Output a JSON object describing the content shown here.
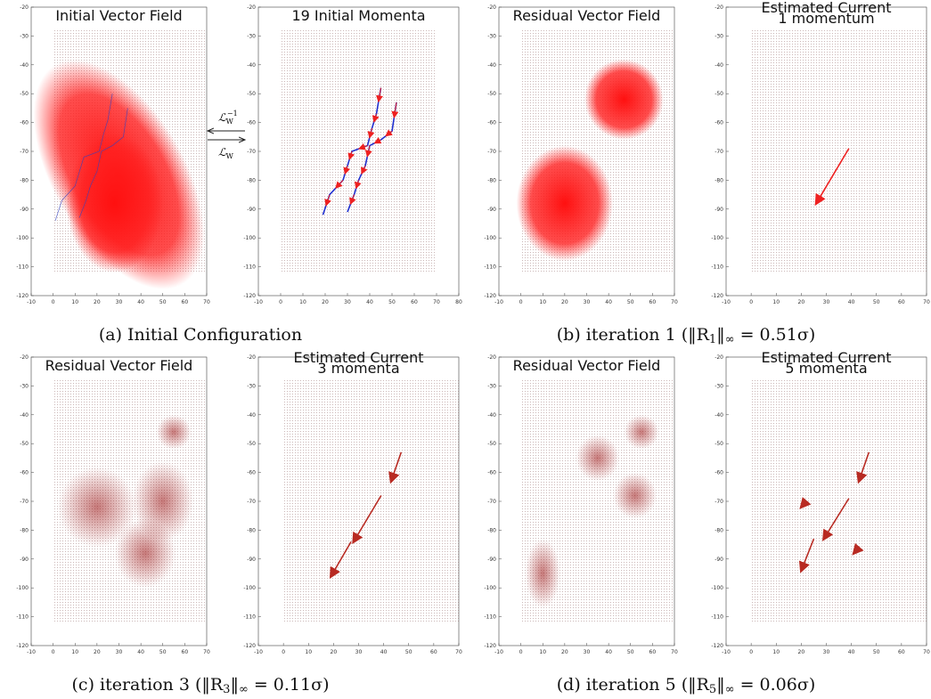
{
  "figures": [
    {
      "caption": [
        {
          "t": "(a) Initial Configuration",
          "k": "n"
        }
      ],
      "operators": {
        "top": {
          "symbol": "ℒ",
          "sub": "W",
          "sup": "−1"
        },
        "bottom": {
          "symbol": "ℒ",
          "sub": "W"
        }
      },
      "panels": [
        {
          "title": [
            "Initial Vector Field"
          ],
          "xticks": [
            -10,
            0,
            10,
            20,
            30,
            40,
            50,
            60,
            70
          ],
          "yticks": [
            -20,
            -30,
            -40,
            -50,
            -60,
            -70,
            -80,
            -90,
            -100,
            -110,
            -120
          ]
        },
        {
          "title": [
            "19 Initial Momenta"
          ],
          "xticks": [
            -10,
            0,
            10,
            20,
            30,
            40,
            50,
            60,
            70,
            80
          ],
          "yticks": [
            -20,
            -30,
            -40,
            -50,
            -60,
            -70,
            -80,
            -90,
            -100,
            -110,
            -120
          ]
        }
      ]
    },
    {
      "caption": [
        {
          "t": "(b) iteration 1 (‖R",
          "k": "n"
        },
        {
          "t": "1",
          "k": "sub"
        },
        {
          "t": "‖",
          "k": "n"
        },
        {
          "t": "∞",
          "k": "sub"
        },
        {
          "t": " = 0.51σ)",
          "k": "n"
        }
      ],
      "panels": [
        {
          "title": [
            "Residual Vector Field"
          ],
          "xticks": [
            -10,
            0,
            10,
            20,
            30,
            40,
            50,
            60,
            70
          ],
          "yticks": [
            -20,
            -30,
            -40,
            -50,
            -60,
            -70,
            -80,
            -90,
            -100,
            -110,
            -120
          ]
        },
        {
          "title": [
            "Estimated Current",
            "1 momentum"
          ],
          "xticks": [
            -10,
            0,
            10,
            20,
            30,
            40,
            50,
            60,
            70
          ],
          "yticks": [
            -20,
            -30,
            -40,
            -50,
            -60,
            -70,
            -80,
            -90,
            -100,
            -110,
            -120
          ]
        }
      ]
    },
    {
      "caption": [
        {
          "t": "(c) iteration 3 (‖R",
          "k": "n"
        },
        {
          "t": "3",
          "k": "sub"
        },
        {
          "t": "‖",
          "k": "n"
        },
        {
          "t": "∞",
          "k": "sub"
        },
        {
          "t": " = 0.11σ)",
          "k": "n"
        }
      ],
      "panels": [
        {
          "title": [
            "Residual Vector Field"
          ],
          "xticks": [
            -10,
            0,
            10,
            20,
            30,
            40,
            50,
            60,
            70
          ],
          "yticks": [
            -20,
            -30,
            -40,
            -50,
            -60,
            -70,
            -80,
            -90,
            -100,
            -110,
            -120
          ]
        },
        {
          "title": [
            "Estimated Current",
            "3 momenta"
          ],
          "xticks": [
            -10,
            0,
            10,
            20,
            30,
            40,
            50,
            60,
            70
          ],
          "yticks": [
            -20,
            -30,
            -40,
            -50,
            -60,
            -70,
            -80,
            -90,
            -100,
            -110,
            -120
          ]
        }
      ]
    },
    {
      "caption": [
        {
          "t": "(d) iteration 5 (‖R",
          "k": "n"
        },
        {
          "t": "5",
          "k": "sub"
        },
        {
          "t": "‖",
          "k": "n"
        },
        {
          "t": "∞",
          "k": "sub"
        },
        {
          "t": " = 0.06σ)",
          "k": "n"
        }
      ],
      "panels": [
        {
          "title": [
            "Residual Vector Field"
          ],
          "xticks": [
            -10,
            0,
            10,
            20,
            30,
            40,
            50,
            60,
            70
          ],
          "yticks": [
            -20,
            -30,
            -40,
            -50,
            -60,
            -70,
            -80,
            -90,
            -100,
            -110,
            -120
          ]
        },
        {
          "title": [
            "Estimated Current",
            "5 momenta"
          ],
          "xticks": [
            -10,
            0,
            10,
            20,
            30,
            40,
            50,
            60,
            70
          ],
          "yticks": [
            -20,
            -30,
            -40,
            -50,
            -60,
            -70,
            -80,
            -90,
            -100,
            -110,
            -120
          ]
        }
      ]
    }
  ]
}
